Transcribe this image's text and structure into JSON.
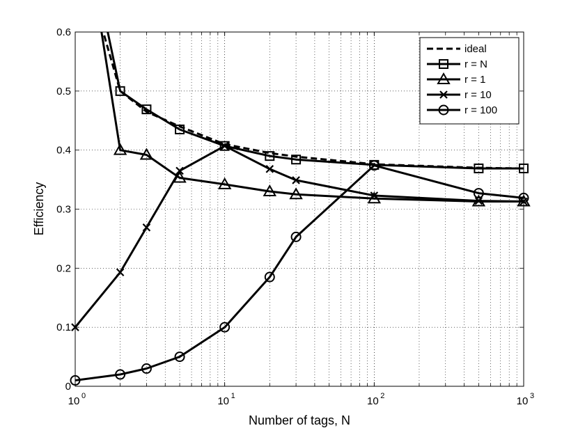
{
  "chart_data": {
    "type": "line",
    "xscale": "log",
    "xlim": [
      1,
      1000
    ],
    "ylim": [
      0,
      0.6
    ],
    "grid": true,
    "legend_position": "top-right",
    "xlabel": "Number of tags, N",
    "ylabel": "Efficiency",
    "x_ticks": [
      {
        "base": "10",
        "exp": "0"
      },
      {
        "base": "10",
        "exp": "1"
      },
      {
        "base": "10",
        "exp": "2"
      },
      {
        "base": "10",
        "exp": "3"
      }
    ],
    "y_ticks": [
      "0",
      "0.1",
      "0.2",
      "0.3",
      "0.4",
      "0.5",
      "0.6"
    ],
    "series": [
      {
        "name": "ideal",
        "marker": "none",
        "dashed": true,
        "x": [
          1.5,
          2,
          3,
          5,
          10,
          20,
          30,
          100,
          500,
          1000
        ],
        "y": [
          0.61,
          0.5,
          0.465,
          0.44,
          0.41,
          0.395,
          0.389,
          0.376,
          0.37,
          0.369
        ]
      },
      {
        "name": "r = N",
        "marker": "square",
        "dashed": false,
        "x": [
          1.65,
          2,
          3,
          5,
          10,
          20,
          30,
          100,
          500,
          1000
        ],
        "y": [
          0.6,
          0.5,
          0.469,
          0.435,
          0.407,
          0.39,
          0.384,
          0.375,
          0.369,
          0.369
        ]
      },
      {
        "name": "r = 1",
        "marker": "triangle",
        "dashed": false,
        "x": [
          1.5,
          2,
          3,
          5,
          10,
          20,
          30,
          100,
          500,
          1000
        ],
        "y": [
          0.6,
          0.4,
          0.392,
          0.353,
          0.342,
          0.33,
          0.325,
          0.318,
          0.313,
          0.313
        ]
      },
      {
        "name": "r = 10",
        "marker": "x",
        "dashed": false,
        "x": [
          1,
          2,
          3,
          5,
          10,
          20,
          30,
          100,
          500,
          1000
        ],
        "y": [
          0.1,
          0.193,
          0.269,
          0.365,
          0.407,
          0.368,
          0.349,
          0.323,
          0.314,
          0.313
        ]
      },
      {
        "name": "r = 100",
        "marker": "circle",
        "dashed": false,
        "x": [
          1,
          2,
          3,
          5,
          10,
          20,
          30,
          100,
          500,
          1000
        ],
        "y": [
          0.01,
          0.02,
          0.03,
          0.05,
          0.1,
          0.185,
          0.253,
          0.374,
          0.327,
          0.319
        ]
      }
    ]
  }
}
